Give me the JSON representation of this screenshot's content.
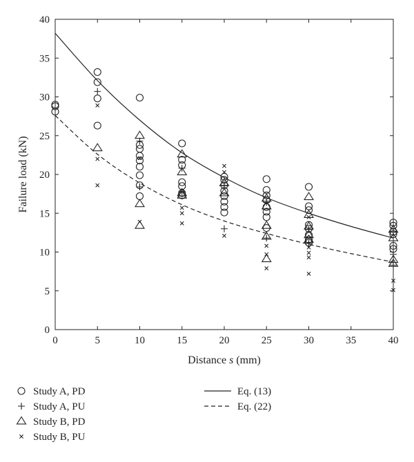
{
  "chart_data": {
    "type": "scatter",
    "xlabel": {
      "prefix": "Distance ",
      "var": "s",
      "suffix": " (mm)"
    },
    "ylabel": "Failure load (kN)",
    "x_categories": [
      0,
      5,
      10,
      15,
      20,
      25,
      30,
      35,
      40
    ],
    "xlim": [
      0,
      40
    ],
    "ylim": [
      0,
      40
    ],
    "y_ticks": [
      0,
      5,
      10,
      15,
      20,
      25,
      30,
      35,
      40
    ],
    "grid": false,
    "legend_position": "below",
    "series": [
      {
        "name": "Study A, PD",
        "marker": "circle",
        "points": [
          [
            0,
            29.0
          ],
          [
            0,
            28.8
          ],
          [
            0,
            28.1
          ],
          [
            5,
            33.2
          ],
          [
            5,
            31.9
          ],
          [
            5,
            29.8
          ],
          [
            5,
            26.3
          ],
          [
            10,
            29.9
          ],
          [
            10,
            23.8
          ],
          [
            10,
            23.3
          ],
          [
            10,
            22.4
          ],
          [
            10,
            21.8
          ],
          [
            10,
            21.0
          ],
          [
            10,
            19.9
          ],
          [
            10,
            18.6
          ],
          [
            10,
            17.2
          ],
          [
            15,
            24.0
          ],
          [
            15,
            21.9
          ],
          [
            15,
            21.2
          ],
          [
            15,
            19.0
          ],
          [
            15,
            18.5
          ],
          [
            15,
            17.6
          ],
          [
            15,
            17.3
          ],
          [
            20,
            19.7
          ],
          [
            20,
            19.3
          ],
          [
            20,
            18.6
          ],
          [
            20,
            17.9
          ],
          [
            20,
            17.2
          ],
          [
            20,
            16.5
          ],
          [
            20,
            15.8
          ],
          [
            20,
            15.1
          ],
          [
            25,
            19.4
          ],
          [
            25,
            18.0
          ],
          [
            25,
            17.3
          ],
          [
            25,
            16.7
          ],
          [
            25,
            15.8
          ],
          [
            25,
            15.2
          ],
          [
            25,
            14.5
          ],
          [
            25,
            13.1
          ],
          [
            30,
            18.4
          ],
          [
            30,
            15.9
          ],
          [
            30,
            15.4
          ],
          [
            30,
            13.5
          ],
          [
            30,
            13.0
          ],
          [
            30,
            12.2
          ],
          [
            30,
            11.6
          ],
          [
            30,
            11.2
          ],
          [
            40,
            13.8
          ],
          [
            40,
            13.4
          ],
          [
            40,
            12.6
          ],
          [
            40,
            12.3
          ],
          [
            40,
            10.8
          ],
          [
            40,
            10.4
          ]
        ]
      },
      {
        "name": "Study A, PU",
        "marker": "plus",
        "points": [
          [
            5,
            30.7
          ],
          [
            10,
            24.3
          ],
          [
            10,
            18.4
          ],
          [
            15,
            20.8
          ],
          [
            15,
            17.8
          ],
          [
            20,
            18.6
          ],
          [
            20,
            13.0
          ],
          [
            25,
            16.4
          ],
          [
            25,
            11.8
          ],
          [
            30,
            12.9
          ],
          [
            30,
            11.1
          ],
          [
            40,
            12.7
          ],
          [
            40,
            9.7
          ],
          [
            40,
            8.3
          ]
        ]
      },
      {
        "name": "Study B, PD",
        "marker": "triangle",
        "points": [
          [
            5,
            23.4
          ],
          [
            10,
            25.0
          ],
          [
            10,
            16.2
          ],
          [
            10,
            13.4
          ],
          [
            15,
            22.6
          ],
          [
            15,
            20.3
          ],
          [
            15,
            17.6
          ],
          [
            15,
            17.3
          ],
          [
            20,
            18.9
          ],
          [
            20,
            17.6
          ],
          [
            25,
            16.9
          ],
          [
            25,
            15.9
          ],
          [
            25,
            13.4
          ],
          [
            25,
            12.0
          ],
          [
            25,
            9.1
          ],
          [
            30,
            17.1
          ],
          [
            30,
            14.8
          ],
          [
            30,
            13.3
          ],
          [
            30,
            12.2
          ],
          [
            30,
            11.6
          ],
          [
            40,
            12.9
          ],
          [
            40,
            11.8
          ],
          [
            40,
            9.0
          ],
          [
            40,
            8.5
          ]
        ]
      },
      {
        "name": "Study B, PU",
        "marker": "x",
        "points": [
          [
            5,
            28.9
          ],
          [
            5,
            22.0
          ],
          [
            5,
            18.6
          ],
          [
            10,
            22.1
          ],
          [
            10,
            13.9
          ],
          [
            15,
            15.7
          ],
          [
            15,
            15.0
          ],
          [
            15,
            13.7
          ],
          [
            20,
            21.1
          ],
          [
            20,
            20.3
          ],
          [
            20,
            12.1
          ],
          [
            25,
            10.8
          ],
          [
            25,
            9.7
          ],
          [
            25,
            7.9
          ],
          [
            30,
            14.5
          ],
          [
            30,
            10.6
          ],
          [
            30,
            9.9
          ],
          [
            30,
            9.3
          ],
          [
            30,
            7.2
          ],
          [
            40,
            6.3
          ],
          [
            40,
            5.1
          ]
        ]
      }
    ],
    "curves": [
      {
        "name": "Eq. (13)",
        "style": "solid",
        "points": [
          [
            0,
            38.2
          ],
          [
            5,
            32.1
          ],
          [
            10,
            27.0
          ],
          [
            15,
            22.8
          ],
          [
            20,
            19.6
          ],
          [
            25,
            17.0
          ],
          [
            30,
            15.0
          ],
          [
            35,
            13.3
          ],
          [
            40,
            11.8
          ]
        ]
      },
      {
        "name": "Eq. (22)",
        "style": "dashed",
        "points": [
          [
            0,
            27.6
          ],
          [
            5,
            22.6
          ],
          [
            10,
            18.9
          ],
          [
            15,
            16.1
          ],
          [
            20,
            14.0
          ],
          [
            25,
            12.4
          ],
          [
            30,
            11.0
          ],
          [
            35,
            9.8
          ],
          [
            40,
            8.7
          ]
        ]
      }
    ]
  }
}
